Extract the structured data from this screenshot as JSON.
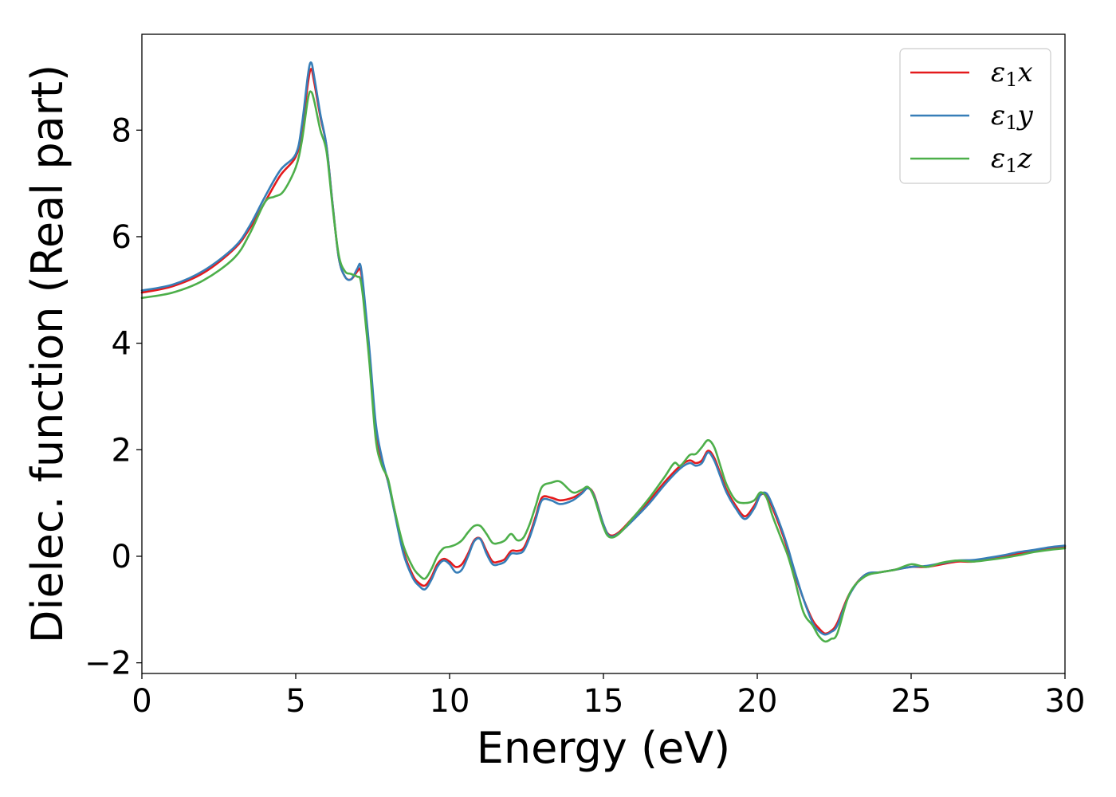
{
  "chart_data": {
    "type": "line",
    "xlabel": "Energy (eV)",
    "ylabel": "Dielec. function (Real part)",
    "xlim": [
      0,
      30
    ],
    "ylim": [
      -2.2,
      9.8
    ],
    "xticks": [
      0,
      5,
      10,
      15,
      20,
      25,
      30
    ],
    "yticks": [
      -2,
      0,
      2,
      4,
      6,
      8
    ],
    "ytick_labels": [
      "−2",
      "0",
      "2",
      "4",
      "6",
      "8"
    ],
    "grid": false,
    "legend_position": "top-right",
    "series": [
      {
        "name": "ε1x",
        "legend": {
          "symbol": "ε",
          "sub": "1",
          "var": "x"
        },
        "color": "#e41a1c",
        "x": [
          0,
          1,
          2,
          3,
          3.5,
          4,
          4.5,
          5,
          5.2,
          5.4,
          5.5,
          5.6,
          5.8,
          6.0,
          6.2,
          6.4,
          6.6,
          6.8,
          7.0,
          7.1,
          7.2,
          7.4,
          7.6,
          7.8,
          8.0,
          8.2,
          8.5,
          8.8,
          9.0,
          9.2,
          9.4,
          9.6,
          9.8,
          10.0,
          10.2,
          10.4,
          10.6,
          10.8,
          11.0,
          11.2,
          11.4,
          11.6,
          11.8,
          12.0,
          12.2,
          12.4,
          12.6,
          12.8,
          13.0,
          13.3,
          13.6,
          14.0,
          14.3,
          14.5,
          14.7,
          15.0,
          15.2,
          15.5,
          16.0,
          16.5,
          17.0,
          17.5,
          17.8,
          18.0,
          18.2,
          18.4,
          18.6,
          18.8,
          19.0,
          19.3,
          19.6,
          19.9,
          20.1,
          20.3,
          20.5,
          20.8,
          21.0,
          21.2,
          21.5,
          21.8,
          22.0,
          22.2,
          22.4,
          22.6,
          23.0,
          23.5,
          24.0,
          24.5,
          25.0,
          25.5,
          26.0,
          26.5,
          27.0,
          27.5,
          28.0,
          28.5,
          29.0,
          29.5,
          30.0
        ],
        "y": [
          4.95,
          5.07,
          5.32,
          5.77,
          6.15,
          6.65,
          7.15,
          7.5,
          8.0,
          8.9,
          9.15,
          8.9,
          8.25,
          7.7,
          6.6,
          5.6,
          5.25,
          5.2,
          5.35,
          5.38,
          5.0,
          3.8,
          2.4,
          1.8,
          1.4,
          0.9,
          0.1,
          -0.35,
          -0.5,
          -0.55,
          -0.4,
          -0.15,
          -0.05,
          -0.1,
          -0.2,
          -0.15,
          0.05,
          0.3,
          0.33,
          0.1,
          -0.1,
          -0.1,
          -0.05,
          0.1,
          0.1,
          0.15,
          0.4,
          0.75,
          1.1,
          1.1,
          1.05,
          1.1,
          1.2,
          1.28,
          1.15,
          0.6,
          0.4,
          0.45,
          0.75,
          1.05,
          1.4,
          1.7,
          1.8,
          1.75,
          1.8,
          1.98,
          1.85,
          1.55,
          1.25,
          0.95,
          0.75,
          0.95,
          1.15,
          1.15,
          0.9,
          0.45,
          0.1,
          -0.3,
          -0.8,
          -1.2,
          -1.35,
          -1.45,
          -1.4,
          -1.25,
          -0.7,
          -0.35,
          -0.3,
          -0.25,
          -0.2,
          -0.2,
          -0.15,
          -0.1,
          -0.1,
          -0.05,
          0.0,
          0.05,
          0.1,
          0.15,
          0.18
        ]
      },
      {
        "name": "ε1y",
        "legend": {
          "symbol": "ε",
          "sub": "1",
          "var": "y"
        },
        "color": "#377eb8",
        "x": [
          0,
          1,
          2,
          3,
          3.5,
          4,
          4.5,
          5,
          5.2,
          5.4,
          5.5,
          5.6,
          5.8,
          6.0,
          6.2,
          6.4,
          6.6,
          6.8,
          7.0,
          7.1,
          7.2,
          7.4,
          7.6,
          7.8,
          8.0,
          8.2,
          8.5,
          8.8,
          9.0,
          9.2,
          9.4,
          9.6,
          9.8,
          10.0,
          10.2,
          10.4,
          10.6,
          10.8,
          11.0,
          11.2,
          11.4,
          11.6,
          11.8,
          12.0,
          12.2,
          12.4,
          12.6,
          12.8,
          13.0,
          13.3,
          13.6,
          14.0,
          14.3,
          14.5,
          14.7,
          15.0,
          15.2,
          15.5,
          16.0,
          16.5,
          17.0,
          17.5,
          17.8,
          18.0,
          18.2,
          18.4,
          18.6,
          18.8,
          19.0,
          19.3,
          19.6,
          19.9,
          20.1,
          20.3,
          20.5,
          20.8,
          21.0,
          21.2,
          21.5,
          21.8,
          22.0,
          22.2,
          22.4,
          22.6,
          23.0,
          23.5,
          24.0,
          24.5,
          25.0,
          25.5,
          26.0,
          26.5,
          27.0,
          27.5,
          28.0,
          28.5,
          29.0,
          29.5,
          30.0
        ],
        "y": [
          4.99,
          5.1,
          5.36,
          5.8,
          6.2,
          6.75,
          7.25,
          7.55,
          8.1,
          9.05,
          9.27,
          9.0,
          8.3,
          7.7,
          6.6,
          5.6,
          5.25,
          5.2,
          5.4,
          5.47,
          5.05,
          3.85,
          2.5,
          1.85,
          1.4,
          0.85,
          0.05,
          -0.4,
          -0.55,
          -0.62,
          -0.45,
          -0.2,
          -0.08,
          -0.15,
          -0.3,
          -0.25,
          0.0,
          0.28,
          0.32,
          0.05,
          -0.15,
          -0.15,
          -0.1,
          0.05,
          0.05,
          0.1,
          0.35,
          0.7,
          1.05,
          1.05,
          0.98,
          1.05,
          1.18,
          1.28,
          1.13,
          0.6,
          0.38,
          0.43,
          0.7,
          1.0,
          1.35,
          1.65,
          1.75,
          1.7,
          1.75,
          1.95,
          1.8,
          1.5,
          1.2,
          0.9,
          0.7,
          0.9,
          1.15,
          1.18,
          0.95,
          0.5,
          0.15,
          -0.25,
          -0.8,
          -1.25,
          -1.4,
          -1.47,
          -1.42,
          -1.3,
          -0.72,
          -0.35,
          -0.3,
          -0.25,
          -0.2,
          -0.18,
          -0.13,
          -0.08,
          -0.07,
          -0.03,
          0.02,
          0.08,
          0.12,
          0.17,
          0.2
        ]
      },
      {
        "name": "ε1z",
        "legend": {
          "symbol": "ε",
          "sub": "1",
          "var": "z"
        },
        "color": "#4daf4a",
        "x": [
          0,
          1,
          2,
          3,
          3.5,
          4,
          4.3,
          4.6,
          5,
          5.2,
          5.4,
          5.5,
          5.6,
          5.8,
          6.0,
          6.2,
          6.4,
          6.6,
          6.8,
          7.0,
          7.1,
          7.2,
          7.4,
          7.6,
          7.8,
          8.0,
          8.2,
          8.5,
          8.8,
          9.0,
          9.2,
          9.4,
          9.6,
          9.8,
          10.0,
          10.2,
          10.4,
          10.6,
          10.8,
          11.0,
          11.2,
          11.4,
          11.6,
          11.8,
          12.0,
          12.2,
          12.4,
          12.6,
          12.8,
          13.0,
          13.3,
          13.6,
          14.0,
          14.3,
          14.5,
          14.7,
          15.0,
          15.2,
          15.5,
          16.0,
          16.5,
          17.0,
          17.3,
          17.5,
          17.8,
          18.0,
          18.2,
          18.4,
          18.6,
          18.8,
          19.0,
          19.3,
          19.6,
          19.9,
          20.1,
          20.3,
          20.5,
          20.8,
          21.0,
          21.2,
          21.5,
          21.8,
          22.0,
          22.2,
          22.4,
          22.6,
          23.0,
          23.5,
          24.0,
          24.5,
          25.0,
          25.5,
          26.0,
          26.5,
          27.0,
          27.5,
          28.0,
          28.5,
          29.0,
          29.5,
          30.0
        ],
        "y": [
          4.85,
          4.95,
          5.18,
          5.6,
          6.05,
          6.65,
          6.75,
          6.85,
          7.3,
          7.8,
          8.6,
          8.72,
          8.55,
          8.0,
          7.6,
          6.55,
          5.65,
          5.35,
          5.3,
          5.25,
          5.2,
          4.8,
          3.6,
          2.2,
          1.7,
          1.45,
          0.9,
          0.2,
          -0.2,
          -0.35,
          -0.42,
          -0.25,
          0.0,
          0.15,
          0.18,
          0.22,
          0.3,
          0.45,
          0.57,
          0.57,
          0.42,
          0.25,
          0.25,
          0.3,
          0.42,
          0.3,
          0.35,
          0.6,
          0.95,
          1.3,
          1.38,
          1.4,
          1.2,
          1.25,
          1.3,
          1.1,
          0.55,
          0.36,
          0.42,
          0.75,
          1.1,
          1.5,
          1.75,
          1.7,
          1.9,
          1.92,
          2.05,
          2.18,
          2.05,
          1.7,
          1.35,
          1.05,
          1.0,
          1.05,
          1.2,
          1.1,
          0.75,
          0.3,
          0.0,
          -0.4,
          -1.05,
          -1.3,
          -1.5,
          -1.6,
          -1.55,
          -1.45,
          -0.7,
          -0.38,
          -0.3,
          -0.25,
          -0.15,
          -0.2,
          -0.12,
          -0.08,
          -0.1,
          -0.07,
          -0.03,
          0.02,
          0.08,
          0.12,
          0.15
        ]
      }
    ]
  }
}
